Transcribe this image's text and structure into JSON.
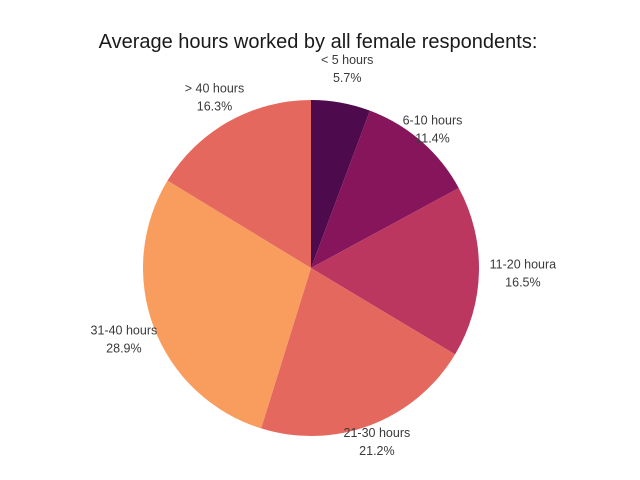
{
  "chart_data": {
    "type": "pie",
    "title": "Average hours worked by all female respondents:",
    "slices": [
      {
        "label": "< 5 hours",
        "value": 5.7,
        "value_label": "5.7%",
        "color": "#4d0b4d"
      },
      {
        "label": "6-10 hours",
        "value": 11.4,
        "value_label": "11.4%",
        "color": "#86155c"
      },
      {
        "label": "11-20 houra",
        "value": 16.5,
        "value_label": "16.5%",
        "color": "#bb3760"
      },
      {
        "label": "21-30 hours",
        "value": 21.2,
        "value_label": "21.2%",
        "color": "#e5685e"
      },
      {
        "label": "31-40 hours",
        "value": 28.9,
        "value_label": "28.9%",
        "color": "#f89d5e"
      },
      {
        "label": "> 40 hours",
        "value": 16.3,
        "value_label": "16.3%",
        "color": "#e5685e"
      }
    ],
    "start_angle_deg": 0,
    "direction": "clockwise",
    "legend": "none"
  }
}
